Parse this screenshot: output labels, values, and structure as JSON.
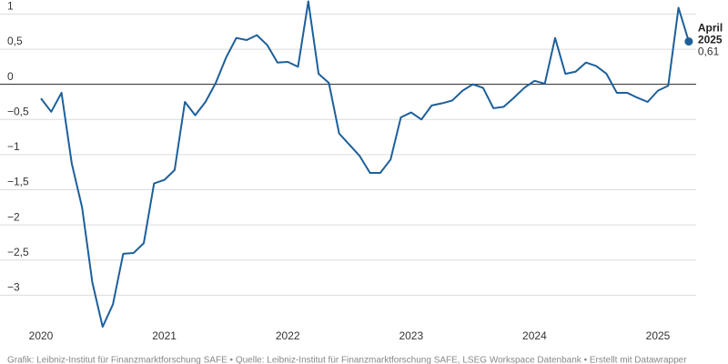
{
  "chart_data": {
    "type": "line",
    "categories": [
      "2020",
      null,
      null,
      null,
      null,
      null,
      null,
      null,
      null,
      null,
      null,
      null,
      "2021",
      null,
      null,
      null,
      null,
      null,
      null,
      null,
      null,
      null,
      null,
      null,
      "2022",
      null,
      null,
      null,
      null,
      null,
      null,
      null,
      null,
      null,
      null,
      null,
      "2023",
      null,
      null,
      null,
      null,
      null,
      null,
      null,
      null,
      null,
      null,
      null,
      "2024",
      null,
      null,
      null,
      null,
      null,
      null,
      null,
      null,
      null,
      null,
      null,
      "2025",
      null,
      null,
      null
    ],
    "series": [
      {
        "color": "#1d5f9a",
        "values": [
          -0.2,
          -0.39,
          -0.12,
          -1.13,
          -1.75,
          -2.82,
          -3.45,
          -3.13,
          -2.41,
          -2.4,
          -2.26,
          -1.41,
          -1.36,
          -1.22,
          -0.25,
          -0.44,
          -0.25,
          0.02,
          0.38,
          0.66,
          0.63,
          0.7,
          0.56,
          0.31,
          0.32,
          0.25,
          1.18,
          0.15,
          0.02,
          -0.7,
          -0.86,
          -1.02,
          -1.26,
          -1.26,
          -1.07,
          -0.47,
          -0.4,
          -0.5,
          -0.3,
          -0.27,
          -0.23,
          -0.09,
          0,
          -0.05,
          -0.34,
          -0.32,
          -0.19,
          -0.05,
          0.05,
          0.01,
          0.66,
          0.15,
          0.18,
          0.31,
          0.26,
          0.15,
          -0.12,
          -0.12,
          -0.19,
          -0.25,
          -0.09,
          -0.02,
          1.09,
          0.61
        ],
        "value_labels": [
          null,
          null,
          null,
          null,
          null,
          null,
          null,
          null,
          null,
          null,
          null,
          null,
          null,
          null,
          null,
          null,
          null,
          null,
          null,
          null,
          null,
          null,
          null,
          null,
          null,
          null,
          null,
          null,
          null,
          null,
          null,
          null,
          null,
          null,
          null,
          null,
          null,
          null,
          null,
          null,
          null,
          null,
          null,
          null,
          null,
          null,
          null,
          null,
          null,
          null,
          null,
          null,
          null,
          null,
          null,
          null,
          null,
          null,
          null,
          null,
          null,
          null,
          null,
          "0,61"
        ]
      }
    ],
    "annotation": [
      "April",
      "2025"
    ],
    "ylim": [
      -3.5,
      1.2
    ],
    "yticks": [
      1,
      {
        "value": 0.5,
        "label": "0,5"
      },
      0,
      {
        "value": -0.5,
        "label": "−0,5"
      },
      {
        "value": -1,
        "label": "−1"
      },
      {
        "value": -1.5,
        "label": "−1,5"
      },
      {
        "value": -2,
        "label": "−2"
      },
      {
        "value": -2.5,
        "label": "−2,5"
      },
      {
        "value": -3,
        "label": "−3"
      }
    ],
    "grid": true,
    "source": "Grafik: Leibniz-Institut für Finanzmarktforschung SAFE • Quelle: Leibniz-Institut für Finanzmarktforschung SAFE, LSEG Workspace Datenbank • Erstellt mit Datawrapper"
  }
}
